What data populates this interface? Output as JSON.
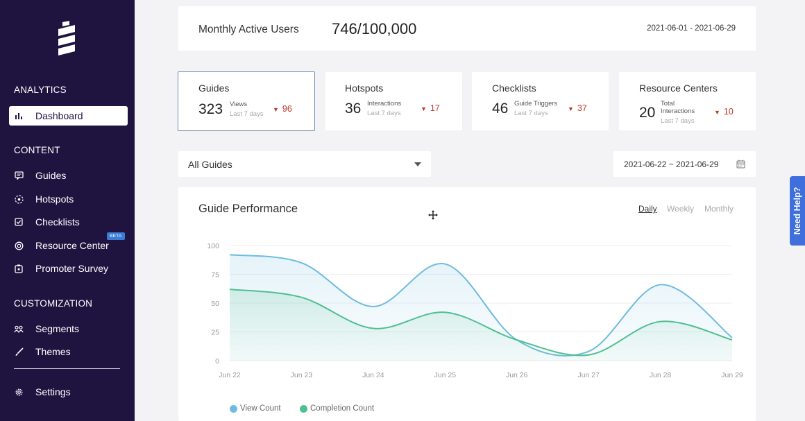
{
  "sidebar": {
    "sections": {
      "analytics": "ANALYTICS",
      "content": "CONTENT",
      "customization": "CUSTOMIZATION"
    },
    "items": {
      "dashboard": "Dashboard",
      "guides": "Guides",
      "hotspots": "Hotspots",
      "checklists": "Checklists",
      "resource_center": "Resource Center",
      "promoter_survey": "Promoter Survey",
      "segments": "Segments",
      "themes": "Themes",
      "settings": "Settings"
    },
    "beta_badge": "BETA"
  },
  "mau": {
    "label": "Monthly Active Users",
    "value": "746/100,000",
    "range": "2021-06-01 - 2021-06-29"
  },
  "stats": [
    {
      "title": "Guides",
      "value": "323",
      "sub1": "Views",
      "sub1b": "",
      "sub2": "Last 7 days",
      "delta": "96"
    },
    {
      "title": "Hotspots",
      "value": "36",
      "sub1": "Interactions",
      "sub1b": "",
      "sub2": "Last 7 days",
      "delta": "17"
    },
    {
      "title": "Checklists",
      "value": "46",
      "sub1": "Guide Triggers",
      "sub1b": "",
      "sub2": "Last 7 days",
      "delta": "37"
    },
    {
      "title": "Resource Centers",
      "value": "20",
      "sub1": "Total",
      "sub1b": "Interactions",
      "sub2": "Last 7 days",
      "delta": "10"
    }
  ],
  "filters": {
    "guide_select": "All Guides",
    "date_range": "2021-06-22 ~ 2021-06-29"
  },
  "chart": {
    "title": "Guide Performance",
    "periods": [
      "Daily",
      "Weekly",
      "Monthly"
    ],
    "active_period": "Daily"
  },
  "chart_data": {
    "type": "area",
    "x": [
      "Jun 22",
      "Jun 23",
      "Jun 24",
      "Jun 25",
      "Jun 26",
      "Jun 27",
      "Jun 28",
      "Jun 29"
    ],
    "yticks": [
      0,
      25,
      50,
      75,
      100
    ],
    "ylim": [
      0,
      100
    ],
    "series": [
      {
        "name": "View Count",
        "color": "#6fbbde",
        "values": [
          92,
          85,
          47,
          84,
          18,
          8,
          66,
          20
        ]
      },
      {
        "name": "Completion Count",
        "color": "#4fbf8f",
        "values": [
          62,
          55,
          28,
          42,
          18,
          5,
          34,
          18
        ]
      }
    ],
    "grid": true,
    "legend": "bottom"
  },
  "help": {
    "label": "Need Help?"
  },
  "colors": {
    "sidebar_bg": "#1f1440",
    "delta_down": "#c0392b",
    "help_bg": "#3f6fdc"
  }
}
